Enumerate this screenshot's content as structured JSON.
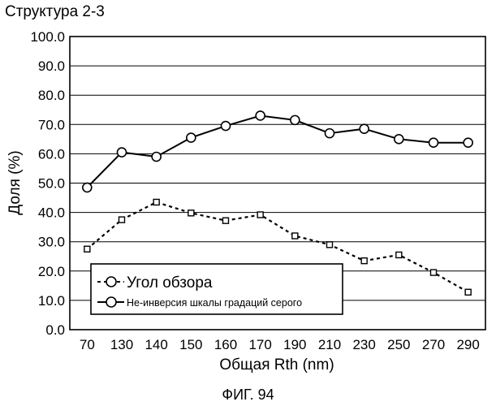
{
  "structure_label": "Структура 2-3",
  "caption": "ФИГ. 94",
  "chart_data": {
    "type": "line",
    "title": "",
    "xlabel": "Общая Rth (nm)",
    "ylabel": "Доля (%)",
    "categories": [
      "70",
      "130",
      "140",
      "150",
      "160",
      "170",
      "190",
      "210",
      "230",
      "250",
      "270",
      "290"
    ],
    "ylim": [
      0,
      100
    ],
    "yticks": [
      "0.0",
      "10.0",
      "20.0",
      "30.0",
      "40.0",
      "50.0",
      "60.0",
      "70.0",
      "80.0",
      "90.0",
      "100.0"
    ],
    "grid": "horizontal",
    "legend_position": "bottom-left",
    "series": [
      {
        "name": "Угол обзора",
        "style": "dashed",
        "marker": "square",
        "values": [
          27.5,
          37.5,
          43.5,
          39.8,
          37.2,
          39.2,
          32.0,
          29.0,
          23.5,
          25.5,
          19.5,
          12.8
        ]
      },
      {
        "name": "Не-инверсия  шкалы градаций серого",
        "style": "solid",
        "marker": "circle",
        "values": [
          48.5,
          60.5,
          59.0,
          65.5,
          69.5,
          73.0,
          71.5,
          67.0,
          68.5,
          65.0,
          63.8,
          63.8
        ]
      }
    ]
  }
}
